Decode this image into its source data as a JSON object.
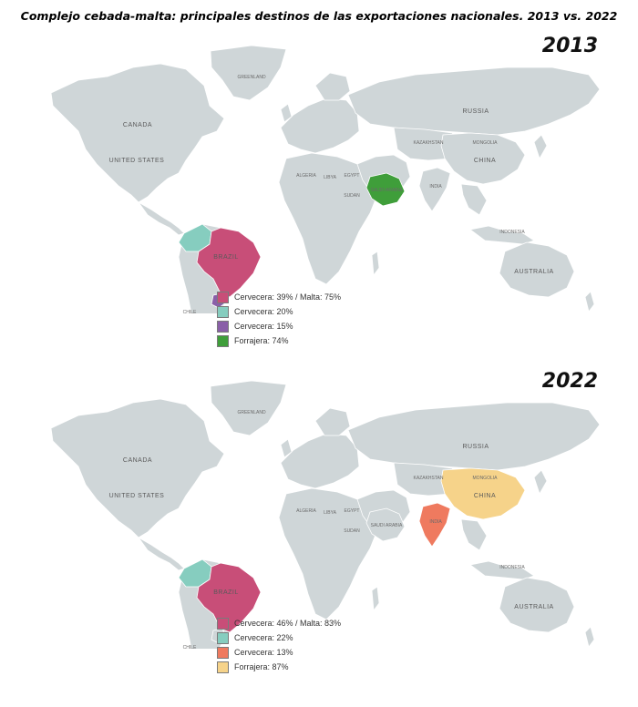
{
  "title": "Complejo cebada-malta: principales destinos de las exportaciones nacionales. 2013 vs. 2022",
  "colors": {
    "land": "#cfd6d8",
    "border": "#ffffff",
    "magenta": "#c84e78",
    "teal": "#86cdbf",
    "purple": "#8a5fa8",
    "green": "#3f9e3a",
    "orange": "#ef7a5f",
    "yellow": "#f6d38a"
  },
  "map_labels": {
    "canada": "CANADA",
    "united_states": "UNITED STATES",
    "greenland": "GREENLAND",
    "russia": "RUSSIA",
    "china": "CHINA",
    "brazil": "BRAZIL",
    "australia": "AUSTRALIA",
    "indonesia": "INDONESIA",
    "india": "INDIA",
    "saudi_arabia": "SAUDI ARABIA",
    "kazakhstan": "KAZAKHSTAN",
    "mongolia": "MONGOLIA",
    "algeria": "ALGERIA",
    "libya": "LIBYA",
    "egypt": "EGYPT",
    "sudan": "SUDAN",
    "chile": "CHILE",
    "argentina": "ARGENTINA"
  },
  "panels": [
    {
      "year": "2013",
      "highlights": {
        "brazil": "magenta",
        "colombia": "teal",
        "uruguay": "purple",
        "saudi_arabia": "green",
        "china": "land",
        "india": "land"
      },
      "legend": [
        {
          "label": "Cervecera: 39% / Malta: 75%",
          "color": "magenta"
        },
        {
          "label": "Cervecera: 20%",
          "color": "teal"
        },
        {
          "label": "Cervecera: 15%",
          "color": "purple"
        },
        {
          "label": "Forrajera: 74%",
          "color": "green"
        }
      ]
    },
    {
      "year": "2022",
      "highlights": {
        "brazil": "magenta",
        "colombia": "teal",
        "uruguay": "land",
        "saudi_arabia": "land",
        "china": "yellow",
        "india": "orange"
      },
      "legend": [
        {
          "label": "Cervecera: 46% / Malta: 83%",
          "color": "magenta"
        },
        {
          "label": "Cervecera: 22%",
          "color": "teal"
        },
        {
          "label": "Cervecera: 13%",
          "color": "orange"
        },
        {
          "label": "Forrajera: 87%",
          "color": "yellow"
        }
      ]
    }
  ]
}
